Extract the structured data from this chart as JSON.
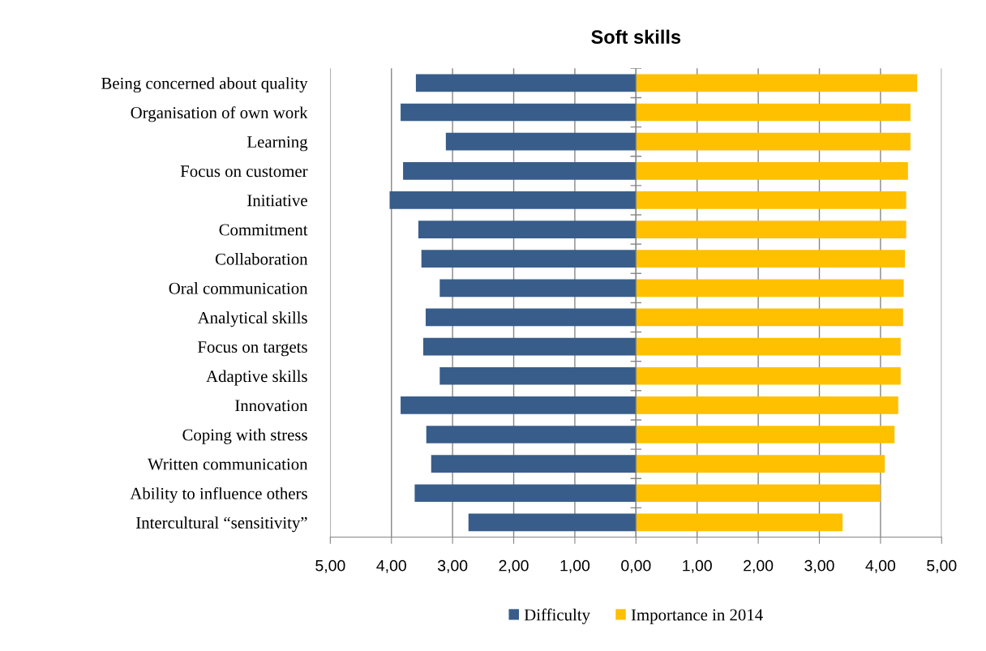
{
  "chart_data": {
    "type": "bar",
    "orientation": "horizontal",
    "title": "Soft skills",
    "categories": [
      "Being concerned about quality",
      "Organisation of own work",
      "Learning",
      "Focus on customer",
      "Initiative",
      "Commitment",
      "Collaboration",
      "Oral communication",
      "Analytical skills",
      "Focus on targets",
      "Adaptive skills",
      "Innovation",
      "Coping with stress",
      "Written communication",
      "Ability to influence others",
      "Intercultural “sensitivity”"
    ],
    "series": [
      {
        "name": "Difficulty",
        "color": "#385d8a",
        "values": [
          -3.6,
          -3.85,
          -3.11,
          -3.81,
          -4.03,
          -3.56,
          -3.51,
          -3.21,
          -3.44,
          -3.48,
          -3.21,
          -3.85,
          -3.43,
          -3.35,
          -3.62,
          -2.74
        ]
      },
      {
        "name": "Importance in 2014",
        "color": "#ffc000",
        "values": [
          4.6,
          4.49,
          4.49,
          4.45,
          4.42,
          4.42,
          4.4,
          4.38,
          4.37,
          4.33,
          4.33,
          4.29,
          4.23,
          4.07,
          4.0,
          3.38
        ]
      }
    ],
    "xlim": [
      -5,
      5
    ],
    "xticks": [
      {
        "value": -5,
        "label": "5,00"
      },
      {
        "value": -4,
        "label": "4,00"
      },
      {
        "value": -3,
        "label": "3,00"
      },
      {
        "value": -2,
        "label": "2,00"
      },
      {
        "value": -1,
        "label": "1,00"
      },
      {
        "value": 0,
        "label": "0,00"
      },
      {
        "value": 1,
        "label": "1,00"
      },
      {
        "value": 2,
        "label": "2,00"
      },
      {
        "value": 3,
        "label": "3,00"
      },
      {
        "value": 4,
        "label": "4,00"
      },
      {
        "value": 5,
        "label": "5,00"
      }
    ],
    "grid": "x",
    "legend": "bottom",
    "stacked": true
  }
}
